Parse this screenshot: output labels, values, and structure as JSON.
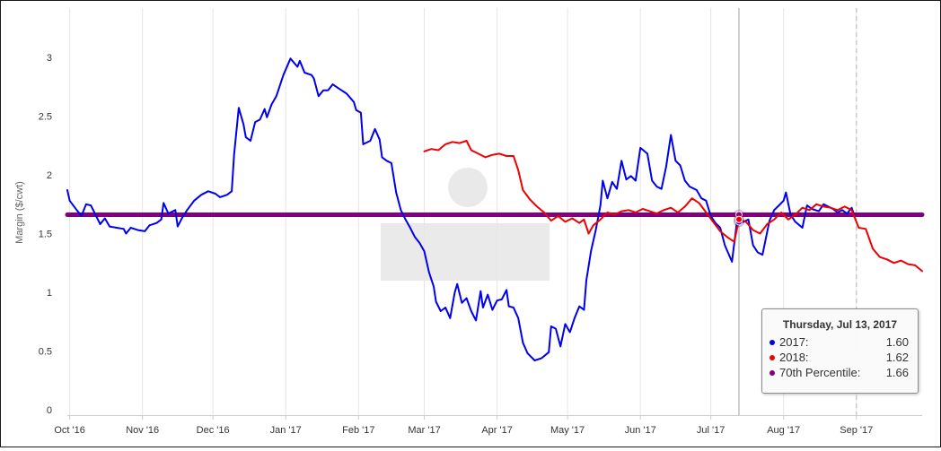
{
  "chart_data": {
    "type": "line",
    "ylabel": "Margin ($/cwt)",
    "ylim": [
      0,
      3.3
    ],
    "y_ticks": [
      0,
      0.5,
      1,
      1.5,
      2,
      2.5,
      3
    ],
    "x_ticks": [
      "Oct '16",
      "Nov '16",
      "Dec '16",
      "Jan '17",
      "Feb '17",
      "Mar '17",
      "Apr '17",
      "May '17",
      "Jun '17",
      "Jul '17",
      "Aug '17",
      "Sep '17"
    ],
    "x_range": [
      "2016-09-30",
      "2017-09-29"
    ],
    "grid": "vertical",
    "legend": "none",
    "series": [
      {
        "name": "2017",
        "color": "#0000ee",
        "points": [
          [
            "2016-09-30",
            1.87
          ],
          [
            "2016-10-01",
            1.78
          ],
          [
            "2016-10-04",
            1.7
          ],
          [
            "2016-10-06",
            1.65
          ],
          [
            "2016-10-08",
            1.75
          ],
          [
            "2016-10-10",
            1.74
          ],
          [
            "2016-10-12",
            1.66
          ],
          [
            "2016-10-14",
            1.58
          ],
          [
            "2016-10-16",
            1.63
          ],
          [
            "2016-10-18",
            1.56
          ],
          [
            "2016-10-21",
            1.55
          ],
          [
            "2016-10-24",
            1.54
          ],
          [
            "2016-10-25",
            1.5
          ],
          [
            "2016-10-27",
            1.55
          ],
          [
            "2016-10-30",
            1.53
          ],
          [
            "2016-11-02",
            1.52
          ],
          [
            "2016-11-04",
            1.57
          ],
          [
            "2016-11-07",
            1.59
          ],
          [
            "2016-11-09",
            1.62
          ],
          [
            "2016-11-10",
            1.76
          ],
          [
            "2016-11-12",
            1.67
          ],
          [
            "2016-11-15",
            1.7
          ],
          [
            "2016-11-16",
            1.56
          ],
          [
            "2016-11-18",
            1.64
          ],
          [
            "2016-11-20",
            1.7
          ],
          [
            "2016-11-23",
            1.78
          ],
          [
            "2016-11-26",
            1.83
          ],
          [
            "2016-11-29",
            1.86
          ],
          [
            "2016-12-02",
            1.84
          ],
          [
            "2016-12-04",
            1.81
          ],
          [
            "2016-12-07",
            1.83
          ],
          [
            "2016-12-09",
            1.86
          ],
          [
            "2016-12-10",
            2.17
          ],
          [
            "2016-12-12",
            2.57
          ],
          [
            "2016-12-14",
            2.43
          ],
          [
            "2016-12-15",
            2.32
          ],
          [
            "2016-12-17",
            2.29
          ],
          [
            "2016-12-19",
            2.45
          ],
          [
            "2016-12-21",
            2.47
          ],
          [
            "2016-12-23",
            2.56
          ],
          [
            "2016-12-24",
            2.49
          ],
          [
            "2016-12-26",
            2.6
          ],
          [
            "2016-12-28",
            2.67
          ],
          [
            "2016-12-31",
            2.85
          ],
          [
            "2017-01-03",
            2.99
          ],
          [
            "2017-01-06",
            2.92
          ],
          [
            "2017-01-07",
            2.97
          ],
          [
            "2017-01-09",
            2.87
          ],
          [
            "2017-01-12",
            2.85
          ],
          [
            "2017-01-13",
            2.82
          ],
          [
            "2017-01-15",
            2.67
          ],
          [
            "2017-01-17",
            2.72
          ],
          [
            "2017-01-19",
            2.72
          ],
          [
            "2017-01-21",
            2.77
          ],
          [
            "2017-01-24",
            2.73
          ],
          [
            "2017-01-27",
            2.69
          ],
          [
            "2017-01-30",
            2.62
          ],
          [
            "2017-01-31",
            2.55
          ],
          [
            "2017-02-02",
            2.53
          ],
          [
            "2017-02-03",
            2.26
          ],
          [
            "2017-02-06",
            2.29
          ],
          [
            "2017-02-08",
            2.39
          ],
          [
            "2017-02-10",
            2.3
          ],
          [
            "2017-02-11",
            2.15
          ],
          [
            "2017-02-13",
            2.12
          ],
          [
            "2017-02-15",
            2.1
          ],
          [
            "2017-02-17",
            1.85
          ],
          [
            "2017-02-19",
            1.7
          ],
          [
            "2017-02-21",
            1.62
          ],
          [
            "2017-02-23",
            1.55
          ],
          [
            "2017-02-25",
            1.47
          ],
          [
            "2017-02-27",
            1.42
          ],
          [
            "2017-03-01",
            1.35
          ],
          [
            "2017-03-03",
            1.17
          ],
          [
            "2017-03-05",
            1.05
          ],
          [
            "2017-03-06",
            0.92
          ],
          [
            "2017-03-08",
            0.84
          ],
          [
            "2017-03-10",
            0.87
          ],
          [
            "2017-03-12",
            0.78
          ],
          [
            "2017-03-14",
            1.0
          ],
          [
            "2017-03-15",
            1.07
          ],
          [
            "2017-03-17",
            0.91
          ],
          [
            "2017-03-19",
            0.95
          ],
          [
            "2017-03-21",
            0.84
          ],
          [
            "2017-03-23",
            0.76
          ],
          [
            "2017-03-25",
            1.01
          ],
          [
            "2017-03-26",
            0.87
          ],
          [
            "2017-03-28",
            0.98
          ],
          [
            "2017-03-30",
            0.85
          ],
          [
            "2017-04-01",
            0.93
          ],
          [
            "2017-04-03",
            0.94
          ],
          [
            "2017-04-05",
            1.02
          ],
          [
            "2017-04-06",
            0.88
          ],
          [
            "2017-04-08",
            0.87
          ],
          [
            "2017-04-10",
            0.78
          ],
          [
            "2017-04-12",
            0.57
          ],
          [
            "2017-04-14",
            0.48
          ],
          [
            "2017-04-17",
            0.42
          ],
          [
            "2017-04-20",
            0.44
          ],
          [
            "2017-04-23",
            0.49
          ],
          [
            "2017-04-24",
            0.71
          ],
          [
            "2017-04-26",
            0.69
          ],
          [
            "2017-04-28",
            0.54
          ],
          [
            "2017-04-30",
            0.73
          ],
          [
            "2017-05-02",
            0.66
          ],
          [
            "2017-05-04",
            0.78
          ],
          [
            "2017-05-06",
            0.88
          ],
          [
            "2017-05-08",
            0.85
          ],
          [
            "2017-05-09",
            1.1
          ],
          [
            "2017-05-11",
            1.35
          ],
          [
            "2017-05-13",
            1.53
          ],
          [
            "2017-05-15",
            1.74
          ],
          [
            "2017-05-16",
            1.95
          ],
          [
            "2017-05-18",
            1.8
          ],
          [
            "2017-05-20",
            1.94
          ],
          [
            "2017-05-22",
            1.88
          ],
          [
            "2017-05-24",
            2.12
          ],
          [
            "2017-05-26",
            1.96
          ],
          [
            "2017-05-28",
            1.99
          ],
          [
            "2017-05-30",
            1.95
          ],
          [
            "2017-06-01",
            2.23
          ],
          [
            "2017-06-04",
            2.18
          ],
          [
            "2017-06-06",
            1.95
          ],
          [
            "2017-06-08",
            1.9
          ],
          [
            "2017-06-10",
            1.88
          ],
          [
            "2017-06-12",
            2.07
          ],
          [
            "2017-06-14",
            2.34
          ],
          [
            "2017-06-16",
            2.12
          ],
          [
            "2017-06-18",
            2.08
          ],
          [
            "2017-06-20",
            1.95
          ],
          [
            "2017-06-22",
            1.9
          ],
          [
            "2017-06-25",
            1.87
          ],
          [
            "2017-06-27",
            1.8
          ],
          [
            "2017-06-29",
            1.78
          ],
          [
            "2017-07-01",
            1.65
          ],
          [
            "2017-07-03",
            1.59
          ],
          [
            "2017-07-05",
            1.55
          ],
          [
            "2017-07-07",
            1.4
          ],
          [
            "2017-07-10",
            1.26
          ],
          [
            "2017-07-12",
            1.58
          ],
          [
            "2017-07-15",
            1.6
          ],
          [
            "2017-07-17",
            1.62
          ],
          [
            "2017-07-19",
            1.4
          ],
          [
            "2017-07-21",
            1.34
          ],
          [
            "2017-07-23",
            1.32
          ],
          [
            "2017-07-26",
            1.61
          ],
          [
            "2017-07-28",
            1.7
          ],
          [
            "2017-07-30",
            1.74
          ],
          [
            "2017-08-01",
            1.78
          ],
          [
            "2017-08-02",
            1.85
          ],
          [
            "2017-08-04",
            1.66
          ],
          [
            "2017-08-06",
            1.6
          ],
          [
            "2017-08-09",
            1.55
          ],
          [
            "2017-08-11",
            1.74
          ],
          [
            "2017-08-13",
            1.71
          ],
          [
            "2017-08-16",
            1.69
          ],
          [
            "2017-08-18",
            1.75
          ],
          [
            "2017-08-20",
            1.73
          ],
          [
            "2017-08-22",
            1.71
          ],
          [
            "2017-08-24",
            1.68
          ],
          [
            "2017-08-26",
            1.7
          ],
          [
            "2017-08-28",
            1.67
          ],
          [
            "2017-08-30",
            1.72
          ],
          [
            "2017-08-31",
            1.66
          ]
        ]
      },
      {
        "name": "2018",
        "color": "#ee0000",
        "points": [
          [
            "2017-03-01",
            2.2
          ],
          [
            "2017-03-04",
            2.22
          ],
          [
            "2017-03-07",
            2.21
          ],
          [
            "2017-03-10",
            2.26
          ],
          [
            "2017-03-13",
            2.28
          ],
          [
            "2017-03-16",
            2.27
          ],
          [
            "2017-03-19",
            2.29
          ],
          [
            "2017-03-21",
            2.21
          ],
          [
            "2017-03-24",
            2.18
          ],
          [
            "2017-03-27",
            2.15
          ],
          [
            "2017-03-30",
            2.17
          ],
          [
            "2017-04-02",
            2.18
          ],
          [
            "2017-04-05",
            2.16
          ],
          [
            "2017-04-08",
            2.16
          ],
          [
            "2017-04-10",
            2.04
          ],
          [
            "2017-04-12",
            1.87
          ],
          [
            "2017-04-15",
            1.79
          ],
          [
            "2017-04-18",
            1.73
          ],
          [
            "2017-04-21",
            1.68
          ],
          [
            "2017-04-24",
            1.61
          ],
          [
            "2017-04-27",
            1.65
          ],
          [
            "2017-04-30",
            1.6
          ],
          [
            "2017-05-03",
            1.63
          ],
          [
            "2017-05-06",
            1.59
          ],
          [
            "2017-05-08",
            1.62
          ],
          [
            "2017-05-10",
            1.5
          ],
          [
            "2017-05-12",
            1.57
          ],
          [
            "2017-05-15",
            1.62
          ],
          [
            "2017-05-18",
            1.68
          ],
          [
            "2017-05-21",
            1.66
          ],
          [
            "2017-05-24",
            1.69
          ],
          [
            "2017-05-27",
            1.7
          ],
          [
            "2017-05-30",
            1.68
          ],
          [
            "2017-06-02",
            1.71
          ],
          [
            "2017-06-05",
            1.69
          ],
          [
            "2017-06-08",
            1.67
          ],
          [
            "2017-06-11",
            1.7
          ],
          [
            "2017-06-14",
            1.72
          ],
          [
            "2017-06-17",
            1.68
          ],
          [
            "2017-06-20",
            1.73
          ],
          [
            "2017-06-23",
            1.8
          ],
          [
            "2017-06-26",
            1.76
          ],
          [
            "2017-06-29",
            1.68
          ],
          [
            "2017-07-02",
            1.6
          ],
          [
            "2017-07-05",
            1.52
          ],
          [
            "2017-07-08",
            1.47
          ],
          [
            "2017-07-11",
            1.43
          ],
          [
            "2017-07-13",
            1.62
          ],
          [
            "2017-07-16",
            1.6
          ],
          [
            "2017-07-19",
            1.53
          ],
          [
            "2017-07-22",
            1.5
          ],
          [
            "2017-07-25",
            1.58
          ],
          [
            "2017-07-28",
            1.62
          ],
          [
            "2017-07-31",
            1.68
          ],
          [
            "2017-08-03",
            1.62
          ],
          [
            "2017-08-06",
            1.66
          ],
          [
            "2017-08-09",
            1.72
          ],
          [
            "2017-08-12",
            1.7
          ],
          [
            "2017-08-15",
            1.75
          ],
          [
            "2017-08-18",
            1.73
          ],
          [
            "2017-08-21",
            1.72
          ],
          [
            "2017-08-24",
            1.7
          ],
          [
            "2017-08-27",
            1.73
          ],
          [
            "2017-08-30",
            1.7
          ],
          [
            "2017-09-02",
            1.55
          ],
          [
            "2017-09-05",
            1.54
          ],
          [
            "2017-09-08",
            1.37
          ],
          [
            "2017-09-11",
            1.3
          ],
          [
            "2017-09-14",
            1.28
          ],
          [
            "2017-09-17",
            1.25
          ],
          [
            "2017-09-20",
            1.27
          ],
          [
            "2017-09-23",
            1.24
          ],
          [
            "2017-09-26",
            1.23
          ],
          [
            "2017-09-29",
            1.18
          ]
        ]
      },
      {
        "name": "70th Percentile",
        "color": "#800080",
        "points": [
          [
            "2016-09-30",
            1.66
          ],
          [
            "2017-09-29",
            1.66
          ]
        ]
      }
    ],
    "crosshair_date": "2017-07-13",
    "today_date": "2017-09-01",
    "tooltip": {
      "title": "Thursday, Jul 13, 2017",
      "rows": [
        {
          "label": "2017:",
          "value": "1.60",
          "color": "#0000ee"
        },
        {
          "label": "2018:",
          "value": "1.62",
          "color": "#ee0000"
        },
        {
          "label": "70th Percentile:",
          "value": "1.66",
          "color": "#800080"
        }
      ]
    }
  }
}
